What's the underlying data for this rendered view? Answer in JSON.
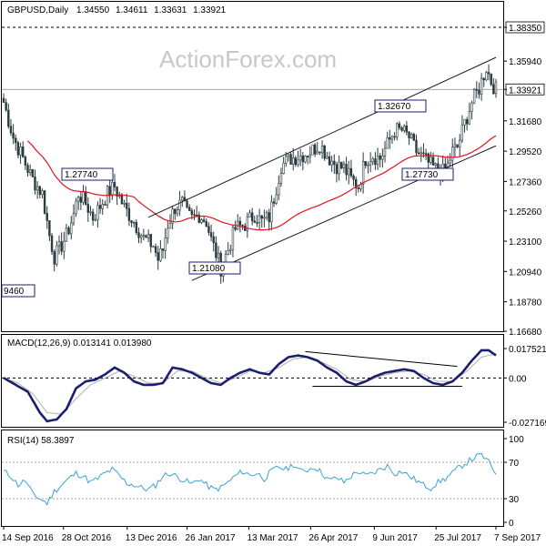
{
  "header": {
    "symbol": "GBPUSD,Daily",
    "open": "1.34550",
    "high": "1.34611",
    "low": "1.33631",
    "close": "1.33921"
  },
  "watermark": "ActionForex.com",
  "colors": {
    "candle": "#2a3b3f",
    "ma": "#e0141e",
    "channel": "#1a1a1a",
    "macd": "#1b1f6e",
    "signal": "#b0b0b0",
    "rsi": "#3ba3d4"
  },
  "chart_data": [
    {
      "type": "candlestick",
      "title": "GBPUSD,Daily",
      "y_ticks": [
        "1.38350",
        "1.35940",
        "1.33921",
        "1.31680",
        "1.29520",
        "1.27360",
        "1.25260",
        "1.23100",
        "1.20940",
        "1.18780",
        "1.16680"
      ],
      "ylim": [
        1.1668,
        1.3835
      ],
      "current_price": "1.33921",
      "resistance_level": 1.3835,
      "x_ticks": [
        "14 Sep 2016",
        "28 Oct 2016",
        "13 Dec 2016",
        "26 Jan 2017",
        "13 Mar 2017",
        "26 Apr 2017",
        "9 Jun 2017",
        "25 Jul 2017",
        "7 Sep 2017"
      ],
      "annotations": [
        "1.27740",
        "1.21080",
        "1.32670",
        "1.27730",
        "9460"
      ],
      "close_path": [
        [
          0,
          1.33
        ],
        [
          4,
          1.305
        ],
        [
          8,
          1.29
        ],
        [
          12,
          1.275
        ],
        [
          16,
          1.265
        ],
        [
          19,
          1.235
        ],
        [
          21,
          1.22
        ],
        [
          23,
          1.225
        ],
        [
          26,
          1.235
        ],
        [
          29,
          1.25
        ],
        [
          31,
          1.265
        ],
        [
          34,
          1.258
        ],
        [
          37,
          1.248
        ],
        [
          40,
          1.256
        ],
        [
          43,
          1.265
        ],
        [
          46,
          1.27
        ],
        [
          50,
          1.255
        ],
        [
          54,
          1.245
        ],
        [
          58,
          1.233
        ],
        [
          62,
          1.228
        ],
        [
          64,
          1.218
        ],
        [
          66,
          1.225
        ],
        [
          68,
          1.243
        ],
        [
          71,
          1.255
        ],
        [
          74,
          1.258
        ],
        [
          76,
          1.25
        ],
        [
          78,
          1.247
        ],
        [
          81,
          1.25
        ],
        [
          84,
          1.245
        ],
        [
          86,
          1.232
        ],
        [
          88,
          1.222
        ],
        [
          90,
          1.212
        ],
        [
          93,
          1.225
        ],
        [
          96,
          1.24
        ],
        [
          100,
          1.243
        ],
        [
          104,
          1.25
        ],
        [
          107,
          1.245
        ],
        [
          110,
          1.248
        ],
        [
          112,
          1.262
        ],
        [
          115,
          1.285
        ],
        [
          119,
          1.29
        ],
        [
          123,
          1.292
        ],
        [
          127,
          1.295
        ],
        [
          131,
          1.3
        ],
        [
          135,
          1.29
        ],
        [
          138,
          1.285
        ],
        [
          141,
          1.283
        ],
        [
          144,
          1.275
        ],
        [
          147,
          1.27
        ],
        [
          150,
          1.29
        ],
        [
          153,
          1.292
        ],
        [
          156,
          1.29
        ],
        [
          159,
          1.3
        ],
        [
          162,
          1.31
        ],
        [
          165,
          1.31
        ],
        [
          168,
          1.305
        ],
        [
          171,
          1.295
        ],
        [
          174,
          1.29
        ],
        [
          177,
          1.285
        ],
        [
          180,
          1.281
        ],
        [
          183,
          1.28
        ],
        [
          186,
          1.295
        ],
        [
          188,
          1.298
        ],
        [
          191,
          1.315
        ],
        [
          194,
          1.33
        ],
        [
          197,
          1.34
        ],
        [
          200,
          1.355
        ],
        [
          202,
          1.345
        ],
        [
          204,
          1.339
        ]
      ]
    },
    {
      "type": "line",
      "title": "MACD(12,26,9) 0.013141 0.013980",
      "y_ticks": [
        "0.017521",
        "0.00",
        "-0.027169"
      ],
      "ylim": [
        -0.027169,
        0.017521
      ],
      "macd": [
        [
          0,
          0.0
        ],
        [
          5,
          -0.004
        ],
        [
          10,
          -0.008
        ],
        [
          15,
          -0.02
        ],
        [
          18,
          -0.025
        ],
        [
          22,
          -0.024
        ],
        [
          26,
          -0.018
        ],
        [
          30,
          -0.006
        ],
        [
          34,
          -0.002
        ],
        [
          38,
          -0.001
        ],
        [
          42,
          0.002
        ],
        [
          46,
          0.006
        ],
        [
          50,
          0.003
        ],
        [
          54,
          -0.002
        ],
        [
          58,
          -0.004
        ],
        [
          62,
          -0.004
        ],
        [
          66,
          -0.003
        ],
        [
          70,
          0.006
        ],
        [
          74,
          0.005
        ],
        [
          78,
          0.003
        ],
        [
          82,
          0.0
        ],
        [
          86,
          -0.003
        ],
        [
          90,
          -0.004
        ],
        [
          94,
          0.0
        ],
        [
          98,
          0.003
        ],
        [
          102,
          0.005
        ],
        [
          106,
          0.003
        ],
        [
          110,
          0.002
        ],
        [
          114,
          0.008
        ],
        [
          118,
          0.012
        ],
        [
          122,
          0.013
        ],
        [
          126,
          0.012
        ],
        [
          130,
          0.01
        ],
        [
          134,
          0.006
        ],
        [
          138,
          0.003
        ],
        [
          142,
          -0.002
        ],
        [
          146,
          -0.004
        ],
        [
          150,
          -0.002
        ],
        [
          154,
          0.001
        ],
        [
          158,
          0.003
        ],
        [
          162,
          0.004
        ],
        [
          166,
          0.005
        ],
        [
          170,
          0.004
        ],
        [
          174,
          0.0
        ],
        [
          178,
          -0.003
        ],
        [
          182,
          -0.004
        ],
        [
          186,
          -0.002
        ],
        [
          190,
          0.003
        ],
        [
          194,
          0.01
        ],
        [
          198,
          0.016
        ],
        [
          201,
          0.016
        ],
        [
          204,
          0.013
        ]
      ],
      "signal": [
        [
          0,
          0.0
        ],
        [
          6,
          -0.003
        ],
        [
          12,
          -0.009
        ],
        [
          18,
          -0.02
        ],
        [
          24,
          -0.021
        ],
        [
          30,
          -0.012
        ],
        [
          36,
          -0.004
        ],
        [
          42,
          0.0
        ],
        [
          48,
          0.004
        ],
        [
          54,
          0.001
        ],
        [
          60,
          -0.003
        ],
        [
          66,
          -0.003
        ],
        [
          72,
          0.004
        ],
        [
          78,
          0.004
        ],
        [
          84,
          0.0
        ],
        [
          90,
          -0.003
        ],
        [
          96,
          0.0
        ],
        [
          102,
          0.004
        ],
        [
          108,
          0.003
        ],
        [
          114,
          0.006
        ],
        [
          120,
          0.011
        ],
        [
          126,
          0.012
        ],
        [
          132,
          0.009
        ],
        [
          138,
          0.005
        ],
        [
          144,
          -0.001
        ],
        [
          150,
          -0.002
        ],
        [
          156,
          0.001
        ],
        [
          162,
          0.003
        ],
        [
          168,
          0.004
        ],
        [
          174,
          0.002
        ],
        [
          180,
          -0.002
        ],
        [
          186,
          -0.002
        ],
        [
          192,
          0.004
        ],
        [
          198,
          0.012
        ],
        [
          204,
          0.014
        ]
      ]
    },
    {
      "type": "line",
      "title": "RSI(14) 58.3897",
      "y_ticks": [
        "100",
        "70",
        "30",
        "0"
      ],
      "ylim": [
        0,
        100
      ],
      "values": [
        [
          0,
          60
        ],
        [
          3,
          55
        ],
        [
          6,
          45
        ],
        [
          9,
          50
        ],
        [
          12,
          35
        ],
        [
          15,
          30
        ],
        [
          18,
          25
        ],
        [
          21,
          38
        ],
        [
          24,
          45
        ],
        [
          27,
          52
        ],
        [
          30,
          58
        ],
        [
          33,
          55
        ],
        [
          36,
          48
        ],
        [
          39,
          52
        ],
        [
          42,
          58
        ],
        [
          45,
          62
        ],
        [
          48,
          55
        ],
        [
          51,
          47
        ],
        [
          54,
          45
        ],
        [
          57,
          42
        ],
        [
          60,
          40
        ],
        [
          63,
          45
        ],
        [
          66,
          55
        ],
        [
          69,
          58
        ],
        [
          72,
          54
        ],
        [
          75,
          50
        ],
        [
          78,
          46
        ],
        [
          81,
          52
        ],
        [
          84,
          45
        ],
        [
          87,
          40
        ],
        [
          90,
          42
        ],
        [
          93,
          48
        ],
        [
          96,
          55
        ],
        [
          99,
          60
        ],
        [
          102,
          56
        ],
        [
          105,
          58
        ],
        [
          108,
          52
        ],
        [
          111,
          60
        ],
        [
          114,
          65
        ],
        [
          117,
          62
        ],
        [
          120,
          68
        ],
        [
          123,
          60
        ],
        [
          126,
          62
        ],
        [
          129,
          65
        ],
        [
          132,
          58
        ],
        [
          135,
          50
        ],
        [
          138,
          53
        ],
        [
          141,
          48
        ],
        [
          144,
          55
        ],
        [
          147,
          60
        ],
        [
          150,
          55
        ],
        [
          153,
          58
        ],
        [
          156,
          62
        ],
        [
          159,
          66
        ],
        [
          162,
          58
        ],
        [
          165,
          60
        ],
        [
          168,
          55
        ],
        [
          171,
          50
        ],
        [
          174,
          45
        ],
        [
          177,
          42
        ],
        [
          180,
          48
        ],
        [
          183,
          52
        ],
        [
          186,
          58
        ],
        [
          189,
          65
        ],
        [
          192,
          70
        ],
        [
          195,
          75
        ],
        [
          198,
          78
        ],
        [
          201,
          70
        ],
        [
          204,
          58
        ]
      ]
    }
  ]
}
